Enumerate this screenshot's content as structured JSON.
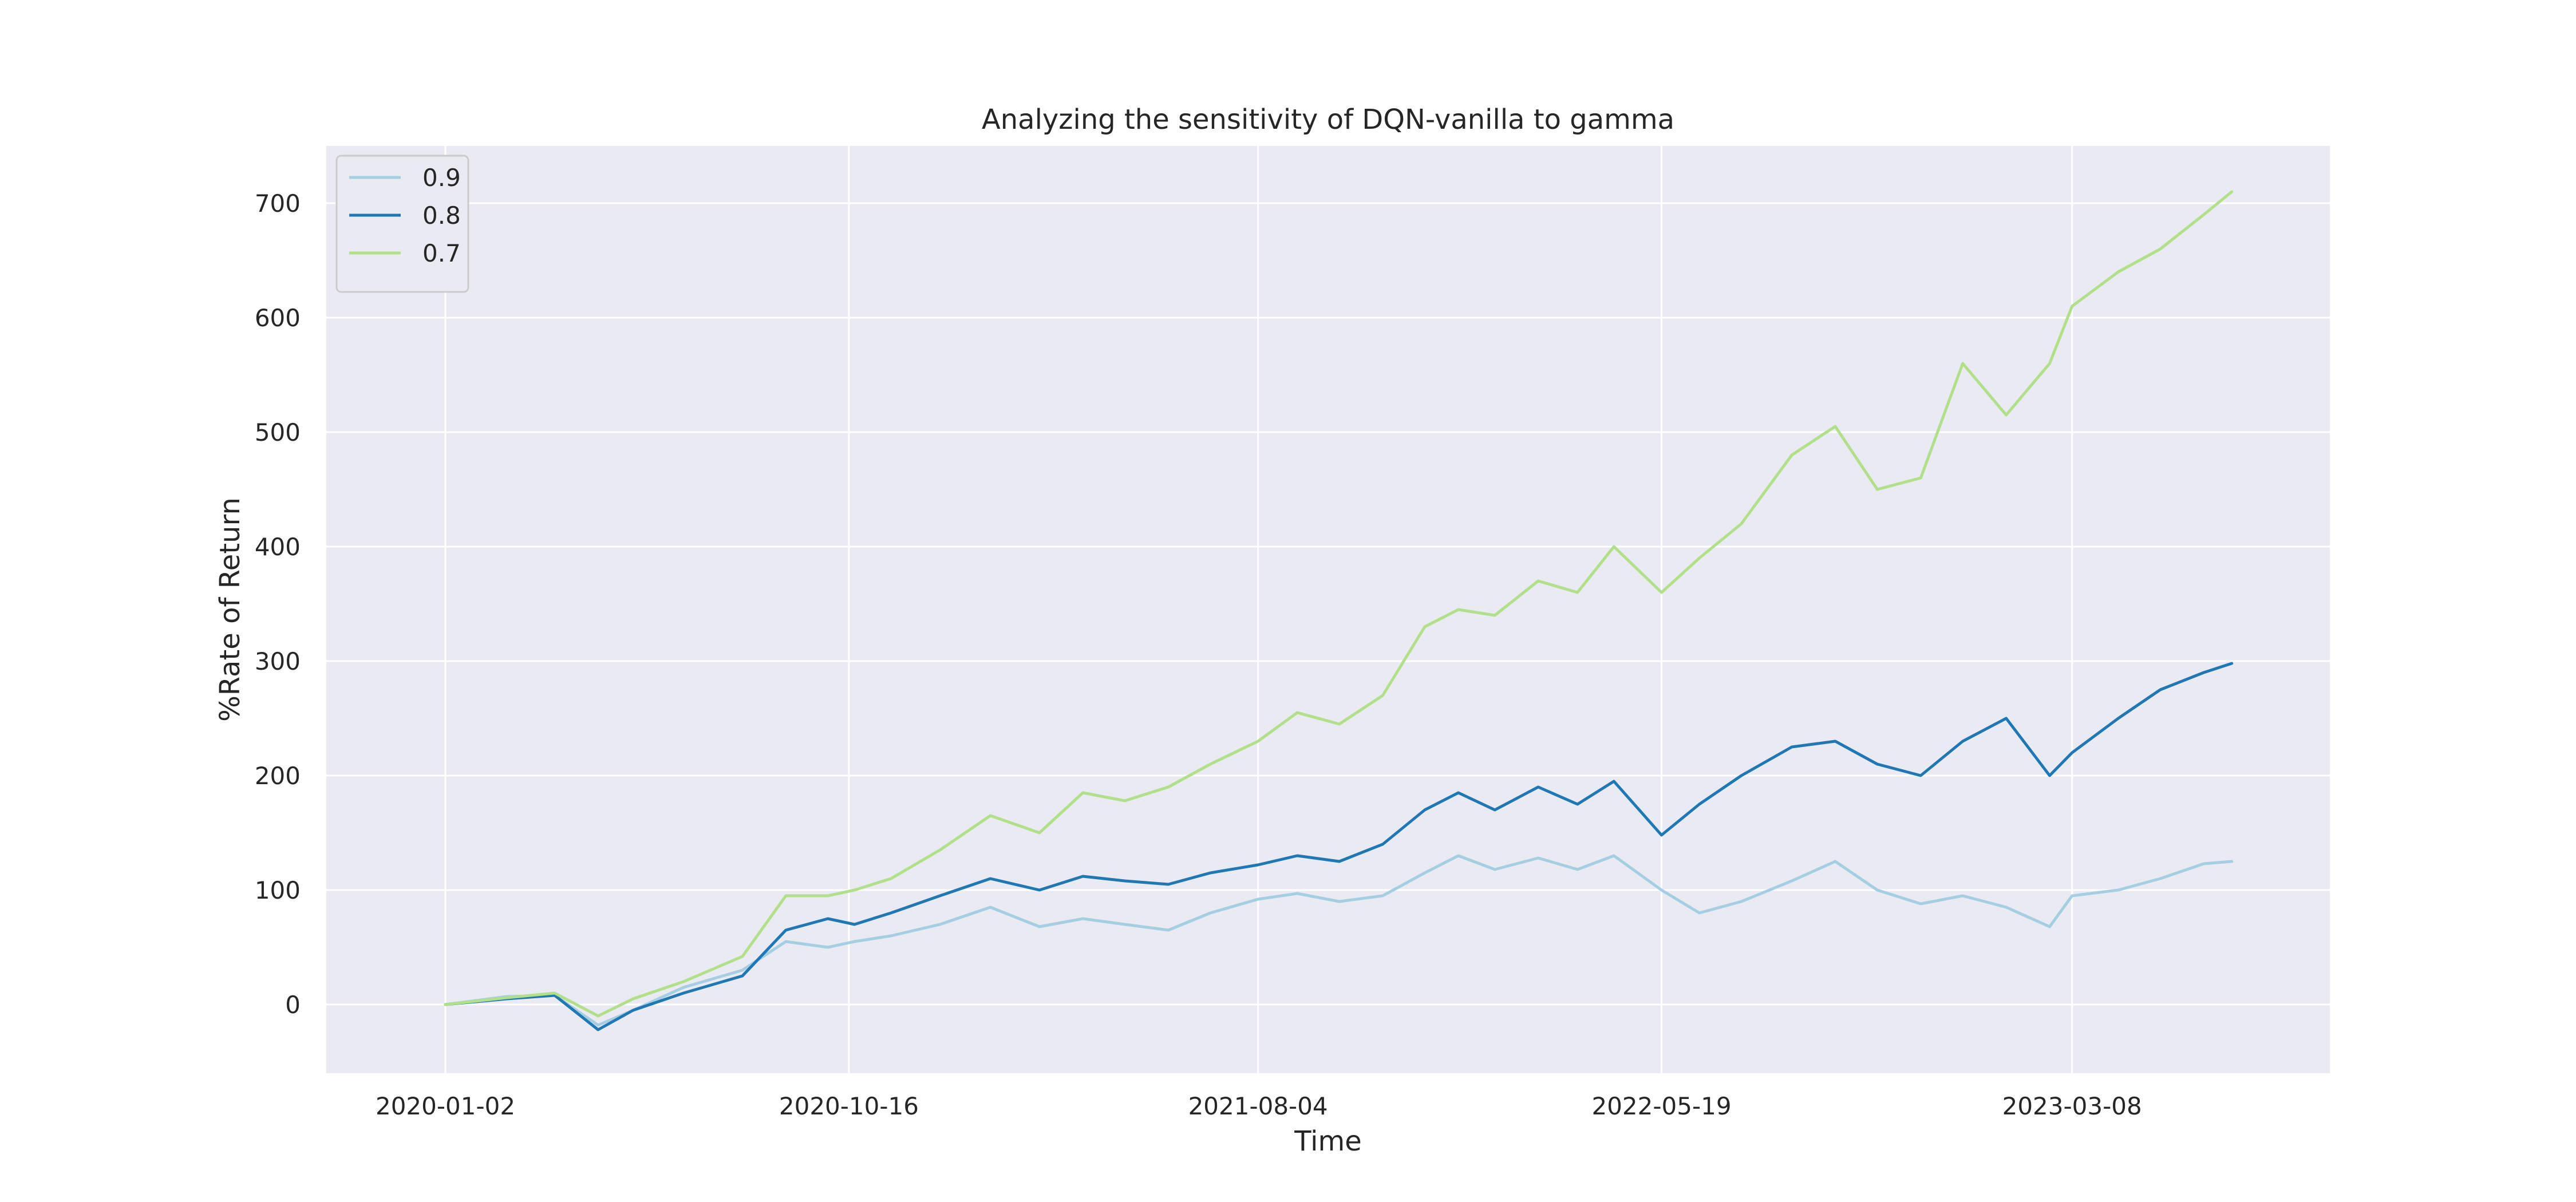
{
  "chart_data": {
    "type": "line",
    "title": "Analyzing the sensitivity of DQN-vanilla to gamma",
    "xlabel": "Time",
    "ylabel": "%Rate of Return",
    "x_ticks": [
      "2020-01-02",
      "2020-10-16",
      "2021-08-04",
      "2022-05-19",
      "2023-03-08"
    ],
    "x_range": [
      "2019-10-09",
      "2023-09-08"
    ],
    "ylim": [
      -60,
      750
    ],
    "y_ticks": [
      0,
      100,
      200,
      300,
      400,
      500,
      600,
      700
    ],
    "grid": true,
    "legend_position": "top-left",
    "series": [
      {
        "name": "0.9",
        "color": "#a6cee3",
        "points": [
          [
            "2020-01-02",
            0
          ],
          [
            "2020-02-15",
            7
          ],
          [
            "2020-03-20",
            8
          ],
          [
            "2020-04-20",
            -18
          ],
          [
            "2020-05-15",
            -5
          ],
          [
            "2020-06-20",
            15
          ],
          [
            "2020-08-01",
            30
          ],
          [
            "2020-09-01",
            55
          ],
          [
            "2020-10-01",
            50
          ],
          [
            "2020-10-20",
            55
          ],
          [
            "2020-11-15",
            60
          ],
          [
            "2020-12-20",
            70
          ],
          [
            "2021-01-25",
            85
          ],
          [
            "2021-03-01",
            68
          ],
          [
            "2021-04-01",
            75
          ],
          [
            "2021-05-01",
            70
          ],
          [
            "2021-06-01",
            65
          ],
          [
            "2021-07-01",
            80
          ],
          [
            "2021-08-04",
            92
          ],
          [
            "2021-09-01",
            97
          ],
          [
            "2021-10-01",
            90
          ],
          [
            "2021-11-01",
            95
          ],
          [
            "2021-12-01",
            115
          ],
          [
            "2021-12-25",
            130
          ],
          [
            "2022-01-20",
            118
          ],
          [
            "2022-02-20",
            128
          ],
          [
            "2022-03-20",
            118
          ],
          [
            "2022-04-15",
            130
          ],
          [
            "2022-05-19",
            100
          ],
          [
            "2022-06-15",
            80
          ],
          [
            "2022-07-15",
            90
          ],
          [
            "2022-08-20",
            108
          ],
          [
            "2022-09-20",
            125
          ],
          [
            "2022-10-20",
            100
          ],
          [
            "2022-11-20",
            88
          ],
          [
            "2022-12-20",
            95
          ],
          [
            "2023-01-20",
            85
          ],
          [
            "2023-02-20",
            68
          ],
          [
            "2023-03-08",
            95
          ],
          [
            "2023-04-10",
            100
          ],
          [
            "2023-05-10",
            110
          ],
          [
            "2023-06-10",
            123
          ],
          [
            "2023-06-30",
            125
          ]
        ]
      },
      {
        "name": "0.8",
        "color": "#1f78b4",
        "points": [
          [
            "2020-01-02",
            0
          ],
          [
            "2020-02-15",
            5
          ],
          [
            "2020-03-20",
            8
          ],
          [
            "2020-04-20",
            -22
          ],
          [
            "2020-05-15",
            -5
          ],
          [
            "2020-06-20",
            10
          ],
          [
            "2020-08-01",
            25
          ],
          [
            "2020-09-01",
            65
          ],
          [
            "2020-10-01",
            75
          ],
          [
            "2020-10-20",
            70
          ],
          [
            "2020-11-15",
            80
          ],
          [
            "2020-12-20",
            95
          ],
          [
            "2021-01-25",
            110
          ],
          [
            "2021-03-01",
            100
          ],
          [
            "2021-04-01",
            112
          ],
          [
            "2021-05-01",
            108
          ],
          [
            "2021-06-01",
            105
          ],
          [
            "2021-07-01",
            115
          ],
          [
            "2021-08-04",
            122
          ],
          [
            "2021-09-01",
            130
          ],
          [
            "2021-10-01",
            125
          ],
          [
            "2021-11-01",
            140
          ],
          [
            "2021-12-01",
            170
          ],
          [
            "2021-12-25",
            185
          ],
          [
            "2022-01-20",
            170
          ],
          [
            "2022-02-20",
            190
          ],
          [
            "2022-03-20",
            175
          ],
          [
            "2022-04-15",
            195
          ],
          [
            "2022-05-19",
            148
          ],
          [
            "2022-06-15",
            175
          ],
          [
            "2022-07-15",
            200
          ],
          [
            "2022-08-20",
            225
          ],
          [
            "2022-09-20",
            230
          ],
          [
            "2022-10-20",
            210
          ],
          [
            "2022-11-20",
            200
          ],
          [
            "2022-12-20",
            230
          ],
          [
            "2023-01-20",
            250
          ],
          [
            "2023-02-20",
            200
          ],
          [
            "2023-03-08",
            220
          ],
          [
            "2023-04-10",
            250
          ],
          [
            "2023-05-10",
            275
          ],
          [
            "2023-06-10",
            290
          ],
          [
            "2023-06-30",
            298
          ]
        ]
      },
      {
        "name": "0.7",
        "color": "#b2df8a",
        "points": [
          [
            "2020-01-02",
            0
          ],
          [
            "2020-02-15",
            6
          ],
          [
            "2020-03-20",
            10
          ],
          [
            "2020-04-20",
            -10
          ],
          [
            "2020-05-15",
            5
          ],
          [
            "2020-06-20",
            20
          ],
          [
            "2020-08-01",
            42
          ],
          [
            "2020-09-01",
            95
          ],
          [
            "2020-10-01",
            95
          ],
          [
            "2020-10-20",
            100
          ],
          [
            "2020-11-15",
            110
          ],
          [
            "2020-12-20",
            135
          ],
          [
            "2021-01-25",
            165
          ],
          [
            "2021-03-01",
            150
          ],
          [
            "2021-04-01",
            185
          ],
          [
            "2021-05-01",
            178
          ],
          [
            "2021-06-01",
            190
          ],
          [
            "2021-07-01",
            210
          ],
          [
            "2021-08-04",
            230
          ],
          [
            "2021-09-01",
            255
          ],
          [
            "2021-10-01",
            245
          ],
          [
            "2021-11-01",
            270
          ],
          [
            "2021-12-01",
            330
          ],
          [
            "2021-12-25",
            345
          ],
          [
            "2022-01-20",
            340
          ],
          [
            "2022-02-20",
            370
          ],
          [
            "2022-03-20",
            360
          ],
          [
            "2022-04-15",
            400
          ],
          [
            "2022-05-19",
            360
          ],
          [
            "2022-06-15",
            390
          ],
          [
            "2022-07-15",
            420
          ],
          [
            "2022-08-20",
            480
          ],
          [
            "2022-09-20",
            505
          ],
          [
            "2022-10-20",
            450
          ],
          [
            "2022-11-20",
            460
          ],
          [
            "2022-12-20",
            560
          ],
          [
            "2023-01-20",
            515
          ],
          [
            "2023-02-20",
            560
          ],
          [
            "2023-03-08",
            610
          ],
          [
            "2023-04-10",
            640
          ],
          [
            "2023-05-10",
            660
          ],
          [
            "2023-06-10",
            690
          ],
          [
            "2023-06-30",
            710
          ]
        ]
      }
    ]
  }
}
